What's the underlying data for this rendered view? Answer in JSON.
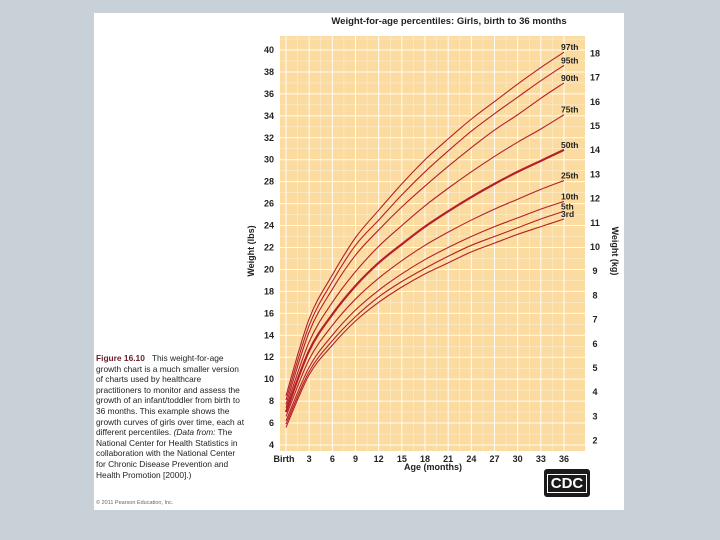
{
  "caption": {
    "figure_label": "Figure 16.10",
    "text": "This weight-for-age growth chart is a much smaller version of charts used by healthcare practitioners to monitor and assess the growth of an infant/toddler from birth to 36 months. This example shows the growth curves of girls over time, each at different percentiles.",
    "source_label": "(Data from:",
    "source_text": "The National Center for Health Statistics in collaboration with the National Center for Chronic Disease Prevention and Health Promotion [2000].)",
    "copyright": "© 2011 Pearson Education, Inc."
  },
  "logo_text": "CDC",
  "colors": {
    "plot_bg": "#fbdba0",
    "grid": "#ffffff",
    "curve": "#b51f2b",
    "median_curve": "#b51f2b"
  },
  "chart_data": {
    "type": "line",
    "title": "Weight-for-age percentiles: Girls, birth to 36 months",
    "xlabel": "Age (months)",
    "ylabel": "Weight (lbs)",
    "ylabel_right": "Weight (kg)",
    "x_tick_labels": [
      "Birth",
      "3",
      "6",
      "9",
      "12",
      "15",
      "18",
      "21",
      "24",
      "27",
      "30",
      "33",
      "36"
    ],
    "x_ticks": [
      0,
      3,
      6,
      9,
      12,
      15,
      18,
      21,
      24,
      27,
      30,
      33,
      36
    ],
    "y_ticks": [
      4,
      6,
      8,
      10,
      12,
      14,
      16,
      18,
      20,
      22,
      24,
      26,
      28,
      30,
      32,
      34,
      36,
      38,
      40
    ],
    "y_ticks_right_kg": [
      2,
      3,
      4,
      5,
      6,
      7,
      8,
      9,
      10,
      11,
      12,
      13,
      14,
      15,
      16,
      17,
      18
    ],
    "xlim": [
      0,
      36
    ],
    "ylim": [
      4,
      41
    ],
    "grid": true,
    "x": [
      0,
      3,
      6,
      9,
      12,
      15,
      18,
      21,
      24,
      27,
      30,
      33,
      36
    ],
    "series": [
      {
        "name": "97th",
        "values": [
          8.5,
          15.5,
          19.5,
          22.9,
          25.4,
          27.8,
          30.0,
          31.9,
          33.7,
          35.3,
          36.9,
          38.4,
          39.8
        ]
      },
      {
        "name": "95th",
        "values": [
          8.1,
          14.9,
          18.9,
          22.2,
          24.5,
          26.8,
          28.9,
          30.8,
          32.6,
          34.2,
          35.7,
          37.2,
          38.6
        ]
      },
      {
        "name": "90th",
        "values": [
          7.7,
          14.3,
          18.2,
          21.3,
          23.6,
          25.7,
          27.6,
          29.4,
          31.1,
          32.7,
          34.1,
          35.6,
          37.0
        ]
      },
      {
        "name": "75th",
        "values": [
          7.4,
          13.4,
          17.0,
          19.8,
          22.1,
          24.0,
          25.8,
          27.4,
          28.9,
          30.3,
          31.6,
          32.8,
          34.1
        ]
      },
      {
        "name": "50th",
        "values": [
          7.0,
          12.6,
          15.9,
          18.5,
          20.6,
          22.3,
          23.9,
          25.3,
          26.6,
          27.8,
          28.9,
          29.9,
          30.9
        ]
      },
      {
        "name": "25th",
        "values": [
          6.6,
          11.8,
          14.9,
          17.3,
          19.2,
          20.8,
          22.2,
          23.4,
          24.5,
          25.5,
          26.4,
          27.3,
          28.1
        ]
      },
      {
        "name": "10th",
        "values": [
          6.2,
          11.1,
          14.0,
          16.3,
          18.1,
          19.6,
          20.9,
          22.0,
          23.0,
          23.9,
          24.7,
          25.5,
          26.2
        ]
      },
      {
        "name": "5th",
        "values": [
          5.9,
          10.7,
          13.5,
          15.7,
          17.5,
          18.9,
          20.1,
          21.2,
          22.2,
          23.0,
          23.8,
          24.6,
          25.3
        ]
      },
      {
        "name": "3rd",
        "values": [
          5.6,
          10.4,
          13.1,
          15.3,
          17.0,
          18.4,
          19.6,
          20.6,
          21.6,
          22.4,
          23.2,
          23.9,
          24.6
        ]
      }
    ]
  }
}
